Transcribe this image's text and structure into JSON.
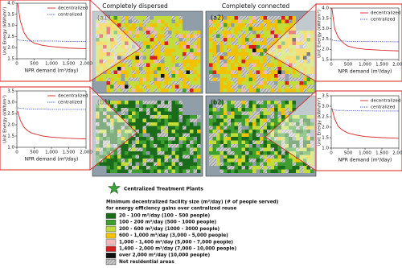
{
  "headers": [
    "Completely dispersed",
    "Completely connected"
  ],
  "panels": [
    "(a1)",
    "(a2)",
    "(b1)",
    "(b2)"
  ],
  "legend": {
    "plants": "Centralized Treatment Plants",
    "title": [
      "Minimum decentralized facility size (m³/day) (# of people served)",
      "for energy efficiency gains over centralized reuse"
    ],
    "items": [
      {
        "label": "20 - 100 m³/day (100 - 500 people)",
        "color": "#1a6b1a"
      },
      {
        "label": "100 - 200 m³/day (500 - 1000 people)",
        "color": "#3e9e30"
      },
      {
        "label": "200 - 600 m³/day (1000 - 3000 people)",
        "color": "#c2dc3a"
      },
      {
        "label": "600 - 1,000 m³/day (3,000 - 5,000 people)",
        "color": "#f2c200"
      },
      {
        "label": "1,000 - 1,400 m³/day (5,000 - 7,000 people)",
        "color": "#f2b8b8"
      },
      {
        "label": "1,400 - 2,000 m³/day (7,000 - 10,000 people)",
        "color": "#d62020"
      },
      {
        "label": "over 2,000 m³/day (10,000 people)",
        "color": "#111111"
      }
    ],
    "other": "Not residential areas"
  },
  "chart_data": [
    {
      "type": "line",
      "xlabel": "NPR demand (m³/day)",
      "ylabel": "Unit Energy (kWh/m³)",
      "legend": "upper right",
      "x": [
        20,
        100,
        200,
        300,
        400,
        500,
        750,
        1000,
        1500,
        2000
      ],
      "series": [
        {
          "name": "decentralized",
          "color": "#d62728",
          "style": "solid",
          "values": [
            4.0,
            3.2,
            2.7,
            2.45,
            2.3,
            2.2,
            2.1,
            2.05,
            1.98,
            1.95
          ]
        },
        {
          "name": "centralized",
          "color": "#3a4bbf",
          "style": "dotted",
          "values": [
            2.35,
            2.33,
            2.32,
            2.3,
            2.3,
            2.3,
            2.3,
            2.3,
            2.28,
            2.28
          ]
        }
      ],
      "xlim": [
        0,
        2000
      ],
      "xticks": [
        0,
        500,
        {
          "value": 1000,
          "label": "1,000"
        },
        {
          "value": 1500,
          "label": "1,500"
        },
        {
          "value": 2000,
          "label": "2,000"
        }
      ],
      "ylim": [
        1.5,
        4.0
      ],
      "yticks": [
        {
          "value": 1.5,
          "label": "1.5"
        },
        {
          "value": 2,
          "label": "2.0"
        },
        {
          "value": 2.5,
          "label": "2.5"
        },
        {
          "value": 3,
          "label": "3.0"
        },
        {
          "value": 3.5,
          "label": "3.5"
        },
        {
          "value": 4,
          "label": "4.0"
        }
      ]
    },
    {
      "type": "line",
      "xlabel": "NPR demand (m³/day)",
      "ylabel": "Unit Energy (kWh/m³)",
      "legend": "upper right",
      "x": [
        20,
        100,
        200,
        300,
        400,
        500,
        750,
        1000,
        1500,
        2000
      ],
      "series": [
        {
          "name": "decentralized",
          "color": "#d62728",
          "style": "solid",
          "values": [
            4.0,
            3.0,
            2.6,
            2.4,
            2.25,
            2.15,
            2.05,
            2.0,
            1.95,
            1.92
          ]
        },
        {
          "name": "centralized",
          "color": "#3a4bbf",
          "style": "dotted",
          "values": [
            2.45,
            2.42,
            2.4,
            2.4,
            2.4,
            2.38,
            2.38,
            2.38,
            2.37,
            2.36
          ]
        }
      ],
      "xlim": [
        0,
        2000
      ],
      "xticks": [
        0,
        500,
        {
          "value": 1000,
          "label": "1,000"
        },
        {
          "value": 1500,
          "label": "1,500"
        },
        {
          "value": 2000,
          "label": "2,000"
        }
      ],
      "ylim": [
        1.5,
        4.0
      ],
      "yticks": [
        {
          "value": 1.5,
          "label": "1.5"
        },
        {
          "value": 2,
          "label": "2.0"
        },
        {
          "value": 2.5,
          "label": "2.5"
        },
        {
          "value": 3,
          "label": "3.0"
        },
        {
          "value": 3.5,
          "label": "3.5"
        },
        {
          "value": 4,
          "label": "4.0"
        }
      ]
    },
    {
      "type": "line",
      "xlabel": "NPR demand (m³/day)",
      "ylabel": "Unit Energy (kWh/m³)",
      "legend": "upper right",
      "x": [
        20,
        100,
        200,
        300,
        400,
        500,
        750,
        1000,
        1500,
        2000
      ],
      "series": [
        {
          "name": "decentralized",
          "color": "#d62728",
          "style": "solid",
          "values": [
            2.6,
            2.2,
            1.9,
            1.75,
            1.65,
            1.6,
            1.5,
            1.45,
            1.4,
            1.37
          ]
        },
        {
          "name": "centralized",
          "color": "#3a4bbf",
          "style": "dotted",
          "values": [
            2.75,
            2.73,
            2.72,
            2.7,
            2.7,
            2.7,
            2.7,
            2.68,
            2.68,
            2.68
          ]
        }
      ],
      "xlim": [
        0,
        2000
      ],
      "xticks": [
        0,
        500,
        {
          "value": 1000,
          "label": "1,000"
        },
        {
          "value": 1500,
          "label": "1,500"
        },
        {
          "value": 2000,
          "label": "2,000"
        }
      ],
      "ylim": [
        1.0,
        3.5
      ],
      "yticks": [
        {
          "value": 1,
          "label": "1.0"
        },
        {
          "value": 1.5,
          "label": "1.5"
        },
        {
          "value": 2,
          "label": "2.0"
        },
        {
          "value": 2.5,
          "label": "2.5"
        },
        {
          "value": 3,
          "label": "3.0"
        },
        {
          "value": 3.5,
          "label": "3.5"
        }
      ]
    },
    {
      "type": "line",
      "xlabel": "NPR demand (m³/day)",
      "ylabel": "Unit Energy (kWh/m³)",
      "legend": "upper right",
      "x": [
        20,
        100,
        200,
        300,
        400,
        500,
        750,
        1000,
        1500,
        2000
      ],
      "series": [
        {
          "name": "decentralized",
          "color": "#d62728",
          "style": "solid",
          "values": [
            2.9,
            2.4,
            2.05,
            1.9,
            1.8,
            1.72,
            1.62,
            1.55,
            1.5,
            1.47
          ]
        },
        {
          "name": "centralized",
          "color": "#3a4bbf",
          "style": "dotted",
          "values": [
            2.85,
            2.82,
            2.8,
            2.8,
            2.8,
            2.78,
            2.78,
            2.78,
            2.77,
            2.77
          ]
        }
      ],
      "xlim": [
        0,
        2000
      ],
      "xticks": [
        0,
        500,
        {
          "value": 1000,
          "label": "1,000"
        },
        {
          "value": 1500,
          "label": "1,500"
        },
        {
          "value": 2000,
          "label": "2,000"
        }
      ],
      "ylim": [
        1.0,
        3.5
      ],
      "yticks": [
        {
          "value": 1,
          "label": "1.0"
        },
        {
          "value": 1.5,
          "label": "1.5"
        },
        {
          "value": 2,
          "label": "2.0"
        },
        {
          "value": 2.5,
          "label": "2.5"
        },
        {
          "value": 3,
          "label": "3.0"
        },
        {
          "value": 3.5,
          "label": "3.5"
        }
      ]
    }
  ]
}
